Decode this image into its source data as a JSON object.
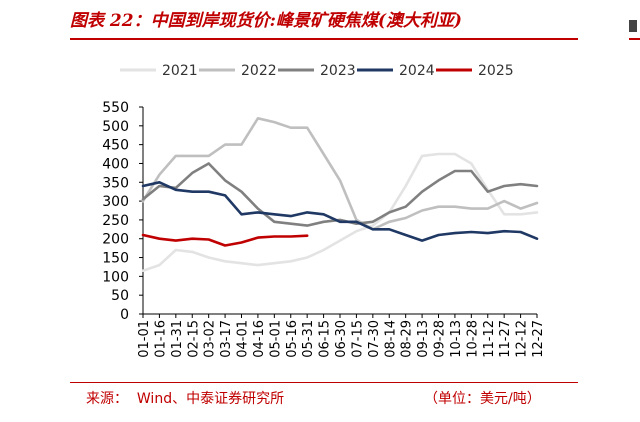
{
  "header": {
    "title": "图表 22：中国到岸现货价:峰景矿硬焦煤(澳大利亚)"
  },
  "footer": {
    "source": "来源：  Wind、中泰证券研究所",
    "unit": "（单位：美元/吨）"
  },
  "chart_data": {
    "type": "line",
    "title": "",
    "xlabel": "",
    "ylabel": "",
    "ylim": [
      0,
      550
    ],
    "yticks": [
      0,
      50,
      100,
      150,
      200,
      250,
      300,
      350,
      400,
      450,
      500,
      550
    ],
    "grid": false,
    "legend_position": "top",
    "categories": [
      "01-01",
      "01-16",
      "01-31",
      "02-15",
      "03-02",
      "03-17",
      "04-01",
      "04-16",
      "05-01",
      "05-16",
      "05-31",
      "06-15",
      "06-30",
      "07-15",
      "07-30",
      "08-14",
      "08-29",
      "09-13",
      "09-28",
      "10-13",
      "10-28",
      "11-12",
      "11-27",
      "12-12",
      "12-27"
    ],
    "series": [
      {
        "name": "2021",
        "color": "#e3e3e3",
        "values": [
          115,
          130,
          170,
          165,
          150,
          140,
          135,
          130,
          135,
          140,
          150,
          170,
          195,
          220,
          235,
          270,
          340,
          420,
          425,
          425,
          400,
          330,
          265,
          265,
          270
        ]
      },
      {
        "name": "2022",
        "color": "#bfbfbf",
        "values": [
          300,
          370,
          420,
          420,
          420,
          450,
          450,
          520,
          510,
          495,
          495,
          425,
          355,
          250,
          225,
          245,
          255,
          275,
          285,
          285,
          280,
          280,
          300,
          280,
          295
        ]
      },
      {
        "name": "2023",
        "color": "#808080",
        "values": [
          305,
          340,
          335,
          375,
          400,
          355,
          325,
          280,
          245,
          240,
          235,
          245,
          250,
          240,
          245,
          270,
          285,
          325,
          355,
          380,
          380,
          325,
          340,
          345,
          340
        ]
      },
      {
        "name": "2024",
        "color": "#1f3864",
        "values": [
          340,
          350,
          330,
          325,
          325,
          315,
          265,
          270,
          265,
          260,
          270,
          265,
          245,
          245,
          225,
          225,
          210,
          195,
          210,
          215,
          218,
          215,
          220,
          218,
          200
        ]
      },
      {
        "name": "2025",
        "color": "#c00000",
        "values": [
          210,
          200,
          195,
          200,
          198,
          182,
          190,
          203,
          206,
          206,
          208,
          null,
          null,
          null,
          null,
          null,
          null,
          null,
          null,
          null,
          null,
          null,
          null,
          null,
          null
        ]
      }
    ]
  }
}
